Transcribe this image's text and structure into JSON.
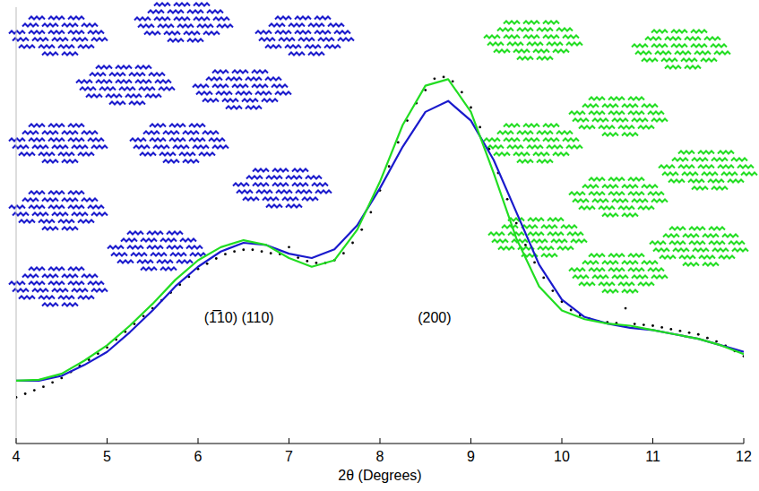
{
  "chart_data": {
    "type": "line",
    "x_label": "2θ (Degrees)",
    "xlim": [
      4,
      12
    ],
    "xticks": [
      4,
      5,
      6,
      7,
      8,
      9,
      10,
      11,
      12
    ],
    "ylim": [
      0,
      100
    ],
    "tick_labels": "x",
    "grid": false,
    "annotations": [
      {
        "text": "(1̅10) (110)",
        "x": 6.45
      },
      {
        "text": "(200)",
        "x": 8.6
      }
    ],
    "series": [
      {
        "type": "scatter",
        "marker": "dot",
        "color": "#000000",
        "x": [
          4.0,
          4.1,
          4.2,
          4.3,
          4.4,
          4.5,
          4.6,
          4.7,
          4.8,
          4.9,
          5.0,
          5.1,
          5.2,
          5.3,
          5.4,
          5.5,
          5.6,
          5.7,
          5.8,
          5.9,
          6.0,
          6.1,
          6.2,
          6.3,
          6.4,
          6.5,
          6.6,
          6.7,
          6.8,
          6.9,
          7.0,
          7.1,
          7.2,
          7.3,
          7.4,
          7.5,
          7.6,
          7.7,
          7.8,
          7.9,
          8.0,
          8.1,
          8.2,
          8.3,
          8.4,
          8.5,
          8.6,
          8.7,
          8.8,
          8.9,
          9.0,
          9.1,
          9.2,
          9.3,
          9.4,
          9.5,
          9.6,
          9.7,
          9.8,
          9.9,
          10.0,
          10.1,
          10.2,
          10.3,
          10.4,
          10.5,
          10.6,
          10.7,
          10.8,
          10.9,
          11.0,
          11.1,
          11.2,
          11.3,
          11.4,
          11.5,
          11.6,
          11.7,
          11.8,
          11.9,
          12.0
        ],
        "values": [
          10.6,
          11.4,
          12.2,
          13,
          14,
          15,
          16.4,
          17.8,
          19.2,
          20.6,
          22,
          23.8,
          25.6,
          27.4,
          29.2,
          31,
          32.8,
          34.6,
          36.4,
          38.2,
          40,
          41.2,
          42.4,
          43.4,
          44,
          44.4,
          44.4,
          44,
          43.6,
          43.4,
          45,
          42.6,
          41.8,
          41.4,
          41.4,
          42,
          43.6,
          46,
          49,
          53,
          58,
          63.5,
          69,
          74,
          78,
          81,
          83.6,
          84,
          83,
          80.5,
          77,
          72.5,
          67.5,
          62,
          56,
          50.5,
          45.5,
          41.5,
          38,
          35,
          32.5,
          30.6,
          29.4,
          28.6,
          28,
          27.8,
          27.6,
          31,
          27.4,
          27.2,
          27,
          26.6,
          26.2,
          25.8,
          25.4,
          25,
          24.2,
          23.4,
          22.4,
          21.2,
          20
        ]
      },
      {
        "type": "line",
        "line_style": "solid",
        "color": "#1a1acc",
        "x": [
          4,
          4.25,
          4.5,
          4.75,
          5,
          5.25,
          5.5,
          5.75,
          6,
          6.25,
          6.5,
          6.75,
          7,
          7.25,
          7.5,
          7.75,
          8,
          8.25,
          8.5,
          8.75,
          9,
          9.25,
          9.5,
          9.75,
          10,
          10.25,
          10.5,
          10.75,
          11,
          11.25,
          11.5,
          11.75,
          12
        ],
        "values": [
          14.4,
          14.4,
          15.5,
          18,
          21,
          25.5,
          30.5,
          36,
          40.5,
          44,
          46,
          45.5,
          43.5,
          42.5,
          44.5,
          50,
          58.5,
          68,
          76,
          78.5,
          74,
          65,
          53,
          41,
          33,
          29,
          27.5,
          26.5,
          26,
          25,
          24,
          22.5,
          21
        ]
      },
      {
        "type": "line",
        "line_style": "solid",
        "color": "#22dd22",
        "x": [
          4,
          4.25,
          4.5,
          4.75,
          5,
          5.25,
          5.5,
          5.75,
          6,
          6.25,
          6.5,
          6.75,
          7,
          7.25,
          7.5,
          7.75,
          8,
          8.25,
          8.5,
          8.75,
          9,
          9.25,
          9.5,
          9.75,
          10,
          10.25,
          10.5,
          10.75,
          11,
          11.25,
          11.5,
          11.75,
          12
        ],
        "values": [
          14.4,
          14.6,
          16,
          19,
          22.5,
          27,
          32,
          37.5,
          42,
          45,
          46.6,
          45.5,
          42.5,
          40.5,
          42,
          49,
          60,
          73,
          82,
          83.5,
          76,
          62,
          47,
          36,
          30.5,
          28.5,
          27.5,
          27,
          26,
          25,
          24,
          22.5,
          20.5
        ]
      }
    ]
  }
}
